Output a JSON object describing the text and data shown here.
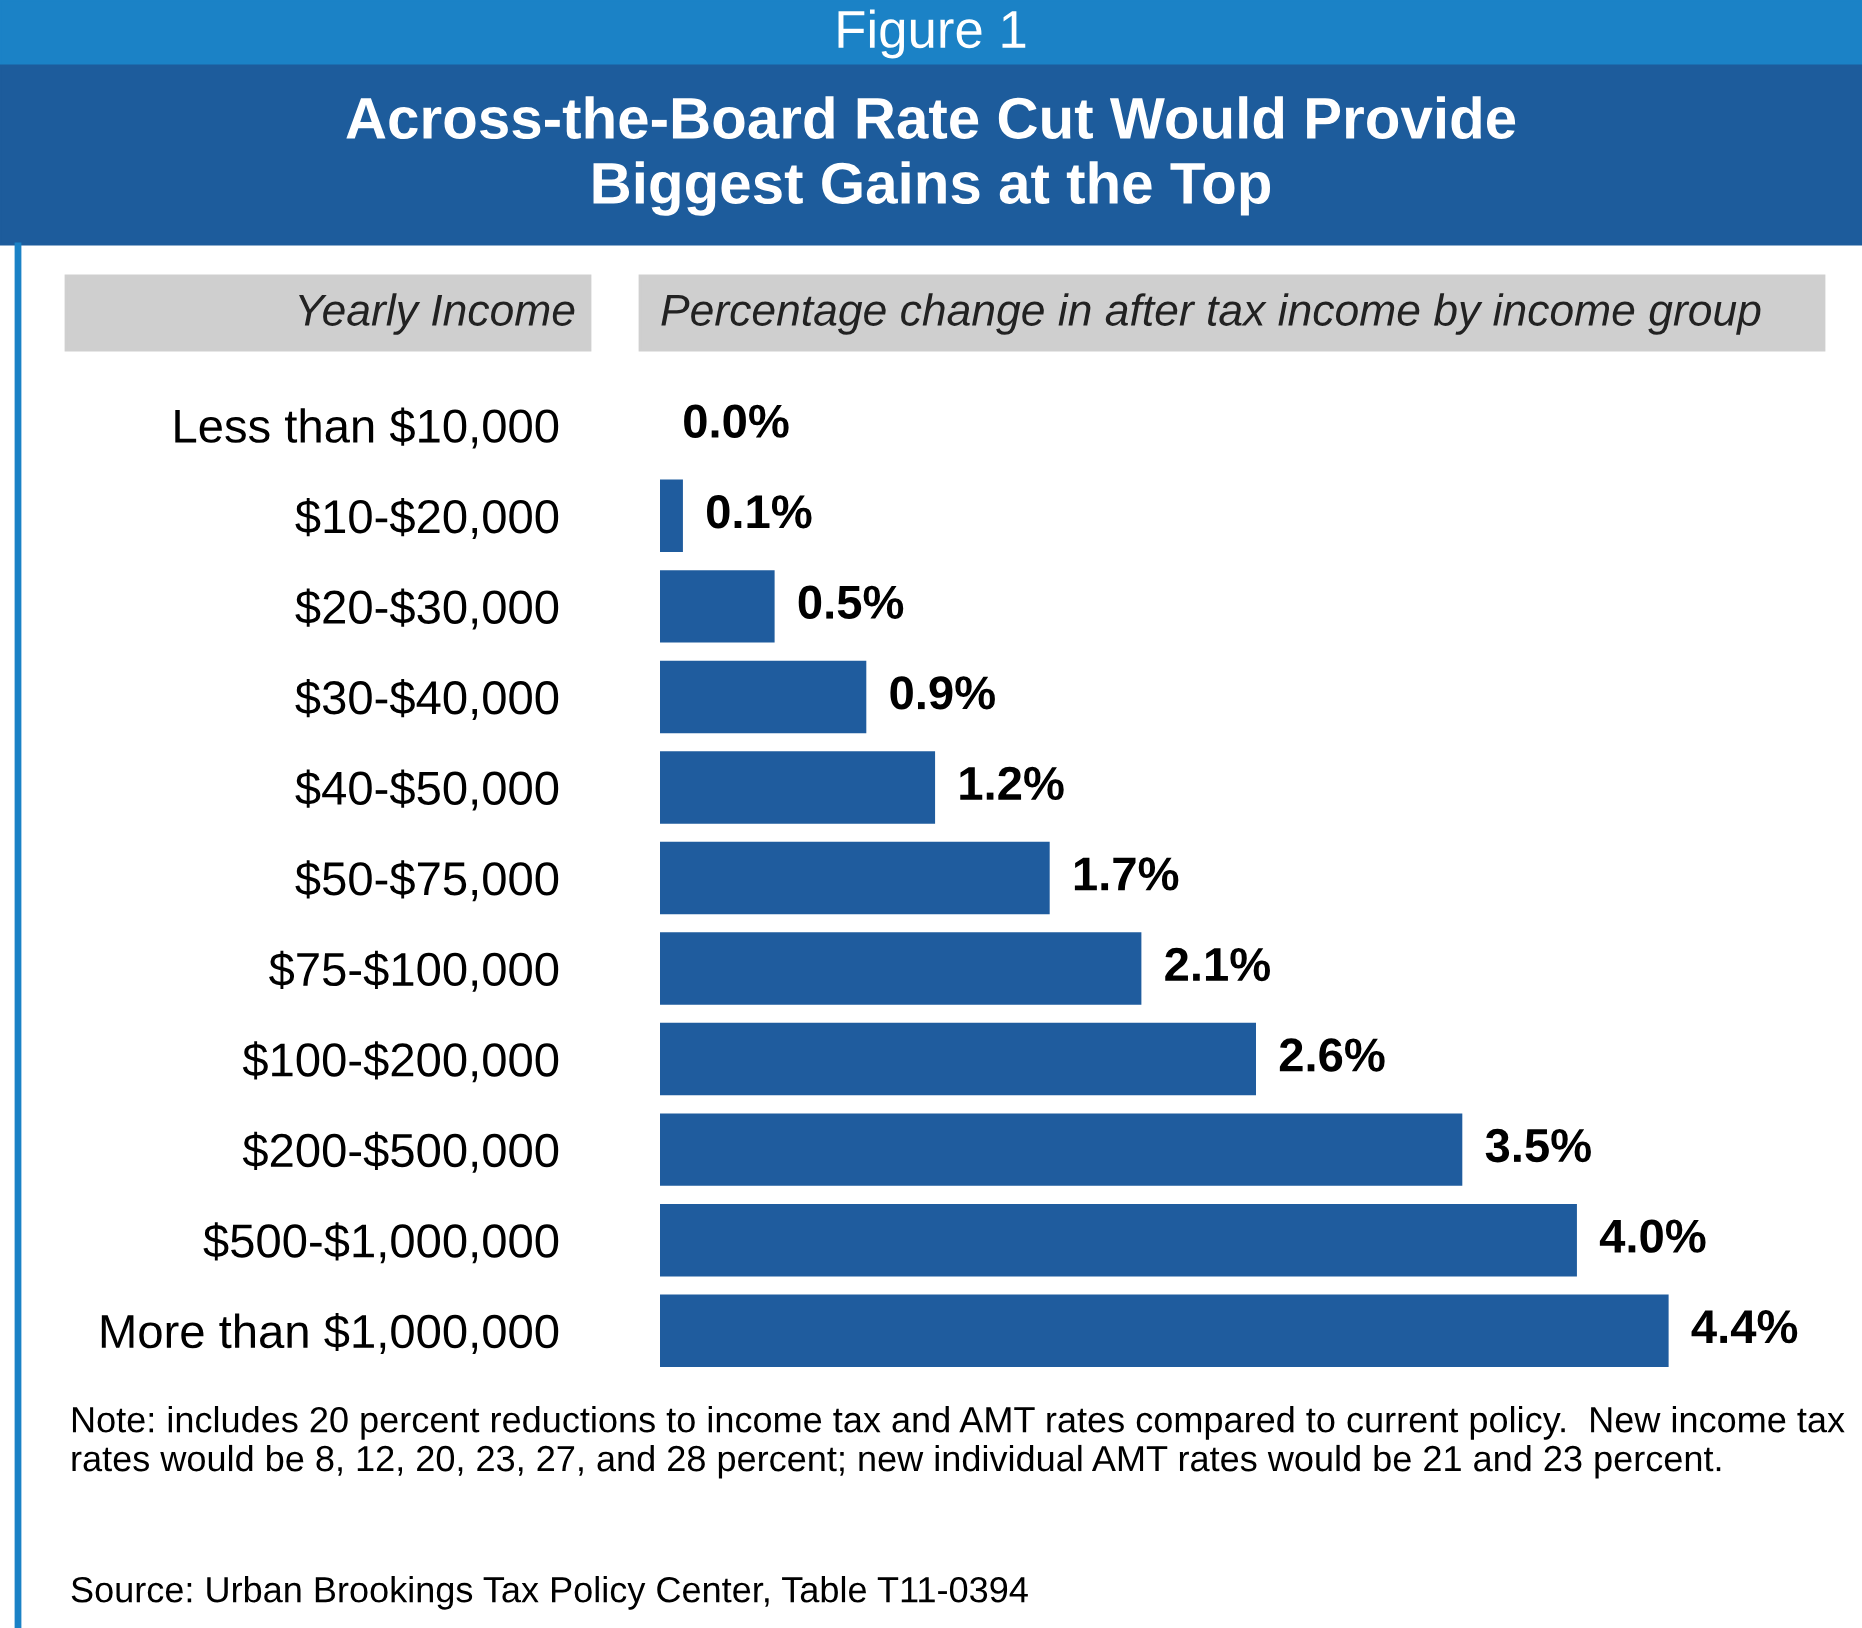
{
  "chart_data": {
    "type": "bar",
    "orientation": "horizontal",
    "subtitle": "Figure 1",
    "title": "Across-the-Board Rate Cut Would Provide\nBiggest Gains at the Top",
    "ylabel": "Yearly Income",
    "xlabel": "Percentage change in after tax income by income group",
    "categories": [
      "Less than $10,000",
      "$10-$20,000",
      "$20-$30,000",
      "$30-$40,000",
      "$40-$50,000",
      "$50-$75,000",
      "$75-$100,000",
      "$100-$200,000",
      "$200-$500,000",
      "$500-$1,000,000",
      "More than $1,000,000"
    ],
    "values": [
      0.0,
      0.1,
      0.5,
      0.9,
      1.2,
      1.7,
      2.1,
      2.6,
      3.5,
      4.0,
      4.4
    ],
    "value_labels": [
      "0.0%",
      "0.1%",
      "0.5%",
      "0.9%",
      "1.2%",
      "1.7%",
      "2.1%",
      "2.6%",
      "3.5%",
      "4.0%",
      "4.4%"
    ],
    "color": "#1f5c9e",
    "grid": false,
    "legend": false,
    "annotations": [
      "Note: includes 20 percent reductions to income tax and AMT rates compared to current policy.  New income tax rates would be 8, 12, 20, 23, 27, and 28 percent; new individual AMT rates would be 21 and 23 percent.",
      "Source: Urban Brookings Tax Policy Center, Table T11-0394"
    ]
  }
}
